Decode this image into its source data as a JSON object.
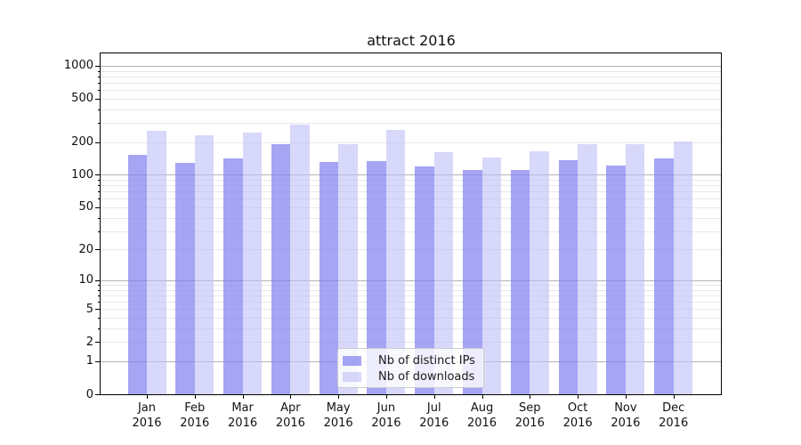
{
  "figure": {
    "title": "attract 2016"
  },
  "colors": {
    "bar_distinct_ips": "rgba(127,127,240,0.70)",
    "bar_downloads": "rgba(190,190,247,0.60)",
    "major_grid": "#b3b3b3",
    "minor_grid": "#e9e9e9",
    "axis": "#000000"
  },
  "legend": {
    "items": [
      {
        "label": "Nb of distinct IPs"
      },
      {
        "label": "Nb of downloads"
      }
    ]
  },
  "chart_data": {
    "type": "bar",
    "title": "attract 2016",
    "categories": [
      "Jan 2016",
      "Feb 2016",
      "Mar 2016",
      "Apr 2016",
      "May 2016",
      "Jun 2016",
      "Jul 2016",
      "Aug 2016",
      "Sep 2016",
      "Oct 2016",
      "Nov 2016",
      "Dec 2016"
    ],
    "series": [
      {
        "name": "Nb of distinct IPs",
        "values": [
          154,
          129,
          142,
          190,
          132,
          135,
          120,
          111,
          110,
          136,
          123,
          143
        ]
      },
      {
        "name": "Nb of downloads",
        "values": [
          255,
          230,
          245,
          290,
          190,
          260,
          162,
          145,
          165,
          193,
          190,
          201
        ]
      }
    ],
    "xlabel": "",
    "ylabel": "",
    "yscale": "log10(1+x)",
    "yticks": [
      0,
      1,
      2,
      5,
      10,
      20,
      50,
      100,
      200,
      500,
      1000
    ],
    "ylim": [
      0,
      1300
    ],
    "grid": "both",
    "legend_position": "lower center"
  }
}
